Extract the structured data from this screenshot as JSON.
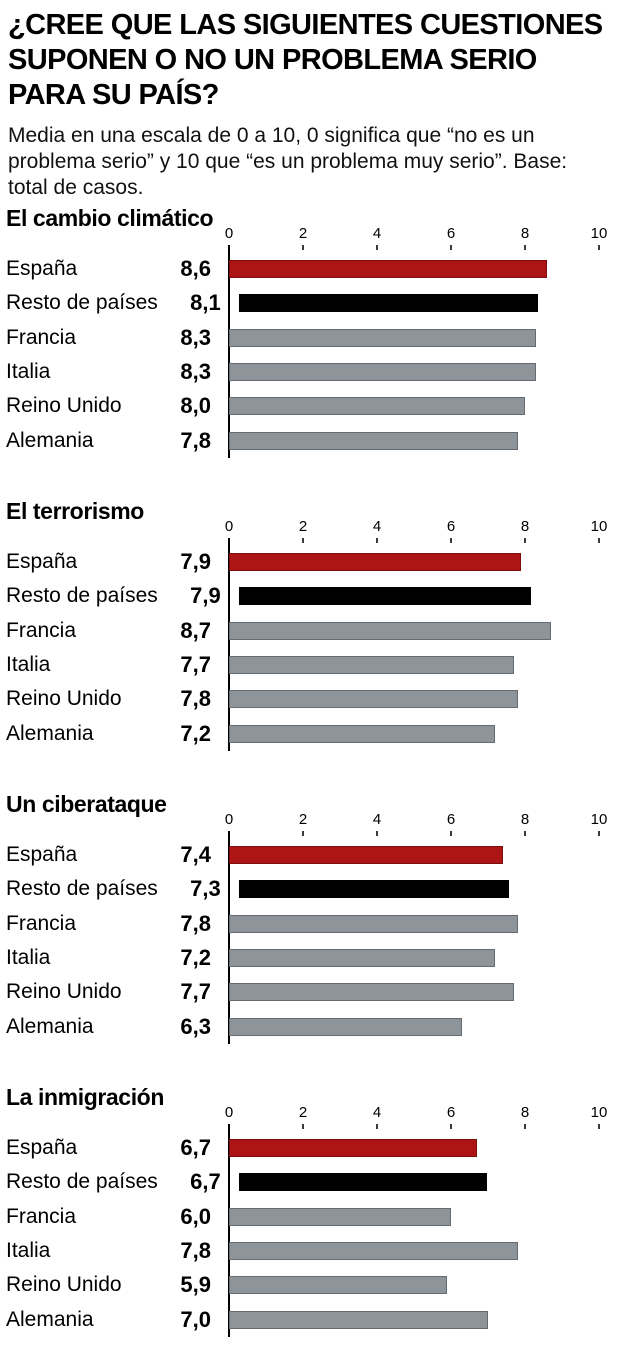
{
  "header": {
    "title": "¿CREE QUE LAS SIGUIENTES CUESTIONES\nSUPONEN O NO UN PROBLEMA SERIO\nPARA SU PAÍS?",
    "subtitle": "Media en una escala de 0 a 10, 0 significa que “no es un\nproblema serio” y 10 que “es un problema muy serio”. Base:\ntotal de casos."
  },
  "colors": {
    "espana_bar": "#ad1414",
    "resto_bar": "#000000",
    "other_bar": "#8d959b"
  },
  "chart_data": [
    {
      "type": "bar",
      "title": "El cambio climático",
      "categories": [
        "España",
        "Resto de países",
        "Francia",
        "Italia",
        "Reino Unido",
        "Alemania"
      ],
      "values": [
        8.6,
        8.1,
        8.3,
        8.3,
        8.0,
        7.8
      ],
      "value_labels": [
        "8,6",
        "8,1",
        "8,3",
        "8,3",
        "8,0",
        "7,8"
      ],
      "bar_colors": [
        "#ad1414",
        "#000000",
        "#8d959b",
        "#8d959b",
        "#8d959b",
        "#8d959b"
      ],
      "xlim": [
        0,
        10
      ],
      "x_ticks": [
        "0",
        "2",
        "4",
        "6",
        "8",
        "10"
      ]
    },
    {
      "type": "bar",
      "title": "El terrorismo",
      "categories": [
        "España",
        "Resto de países",
        "Francia",
        "Italia",
        "Reino Unido",
        "Alemania"
      ],
      "values": [
        7.9,
        7.9,
        8.7,
        7.7,
        7.8,
        7.2
      ],
      "value_labels": [
        "7,9",
        "7,9",
        "8,7",
        "7,7",
        "7,8",
        "7,2"
      ],
      "bar_colors": [
        "#ad1414",
        "#000000",
        "#8d959b",
        "#8d959b",
        "#8d959b",
        "#8d959b"
      ],
      "xlim": [
        0,
        10
      ],
      "x_ticks": [
        "0",
        "2",
        "4",
        "6",
        "8",
        "10"
      ]
    },
    {
      "type": "bar",
      "title": "Un ciberataque",
      "categories": [
        "España",
        "Resto de países",
        "Francia",
        "Italia",
        "Reino Unido",
        "Alemania"
      ],
      "values": [
        7.4,
        7.3,
        7.8,
        7.2,
        7.7,
        6.3
      ],
      "value_labels": [
        "7,4",
        "7,3",
        "7,8",
        "7,2",
        "7,7",
        "6,3"
      ],
      "bar_colors": [
        "#ad1414",
        "#000000",
        "#8d959b",
        "#8d959b",
        "#8d959b",
        "#8d959b"
      ],
      "xlim": [
        0,
        10
      ],
      "x_ticks": [
        "0",
        "2",
        "4",
        "6",
        "8",
        "10"
      ]
    },
    {
      "type": "bar",
      "title": "La inmigración",
      "categories": [
        "España",
        "Resto de países",
        "Francia",
        "Italia",
        "Reino Unido",
        "Alemania"
      ],
      "values": [
        6.7,
        6.7,
        6.0,
        7.8,
        5.9,
        7.0
      ],
      "value_labels": [
        "6,7",
        "6,7",
        "6,0",
        "7,8",
        "5,9",
        "7,0"
      ],
      "bar_colors": [
        "#ad1414",
        "#000000",
        "#8d959b",
        "#8d959b",
        "#8d959b",
        "#8d959b"
      ],
      "xlim": [
        0,
        10
      ],
      "x_ticks": [
        "0",
        "2",
        "4",
        "6",
        "8",
        "10"
      ]
    }
  ]
}
